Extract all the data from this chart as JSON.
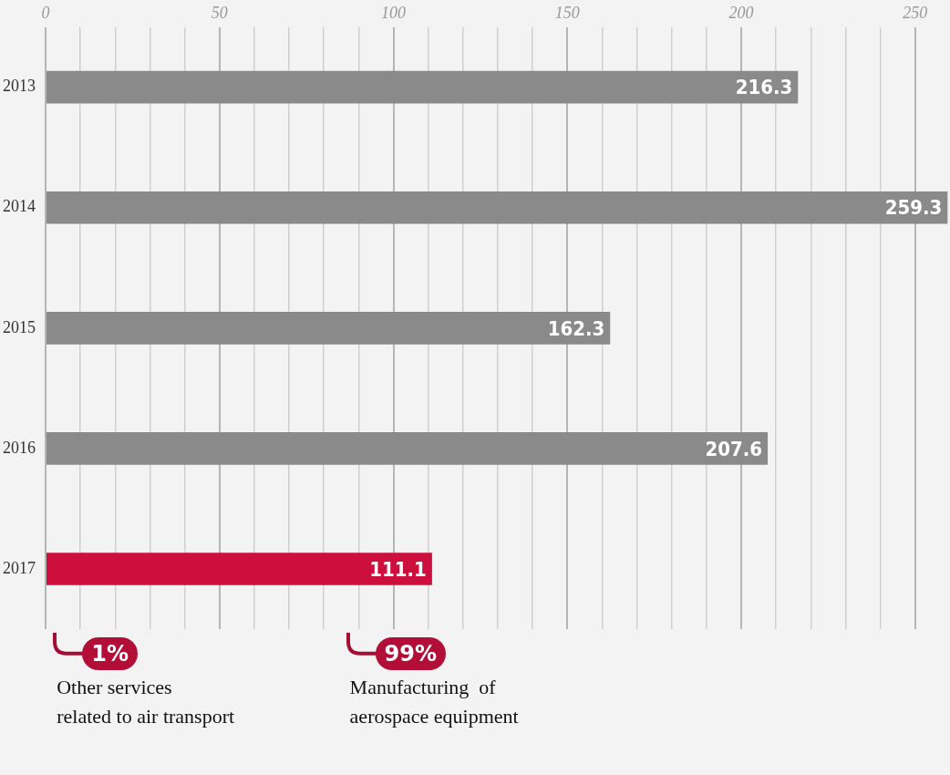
{
  "chart_data": {
    "type": "bar",
    "orientation": "horizontal",
    "categories": [
      "2013",
      "2014",
      "2015",
      "2016",
      "2017"
    ],
    "values": [
      216.3,
      259.3,
      162.3,
      207.6,
      111.1
    ],
    "colors": [
      "#8a8a8a",
      "#8a8a8a",
      "#8a8a8a",
      "#8a8a8a",
      "#cc0f3c"
    ],
    "xlim": [
      0,
      260
    ],
    "xticks": [
      0,
      {
        "value": 10,
        "label": null
      },
      {
        "value": 20,
        "label": null
      },
      {
        "value": 30,
        "label": null
      },
      {
        "value": 40,
        "label": null
      },
      50,
      {
        "value": 60,
        "label": null
      },
      {
        "value": 70,
        "label": null
      },
      {
        "value": 80,
        "label": null
      },
      {
        "value": 90,
        "label": null
      },
      100,
      {
        "value": 110,
        "label": null
      },
      {
        "value": 120,
        "label": null
      },
      {
        "value": 130,
        "label": null
      },
      {
        "value": 140,
        "label": null
      },
      150,
      {
        "value": 160,
        "label": null
      },
      {
        "value": 170,
        "label": null
      },
      {
        "value": 180,
        "label": null
      },
      {
        "value": 190,
        "label": null
      },
      200,
      {
        "value": 210,
        "label": null
      },
      {
        "value": 220,
        "label": null
      },
      {
        "value": 230,
        "label": null
      },
      {
        "value": 240,
        "label": null
      },
      250
    ],
    "grid": "x",
    "data_labels": true,
    "legend": false,
    "annotations": [
      "1%",
      "Other services\nrelated to air transport",
      "99%",
      "Manufacturing  of\naerospace equipment"
    ]
  }
}
